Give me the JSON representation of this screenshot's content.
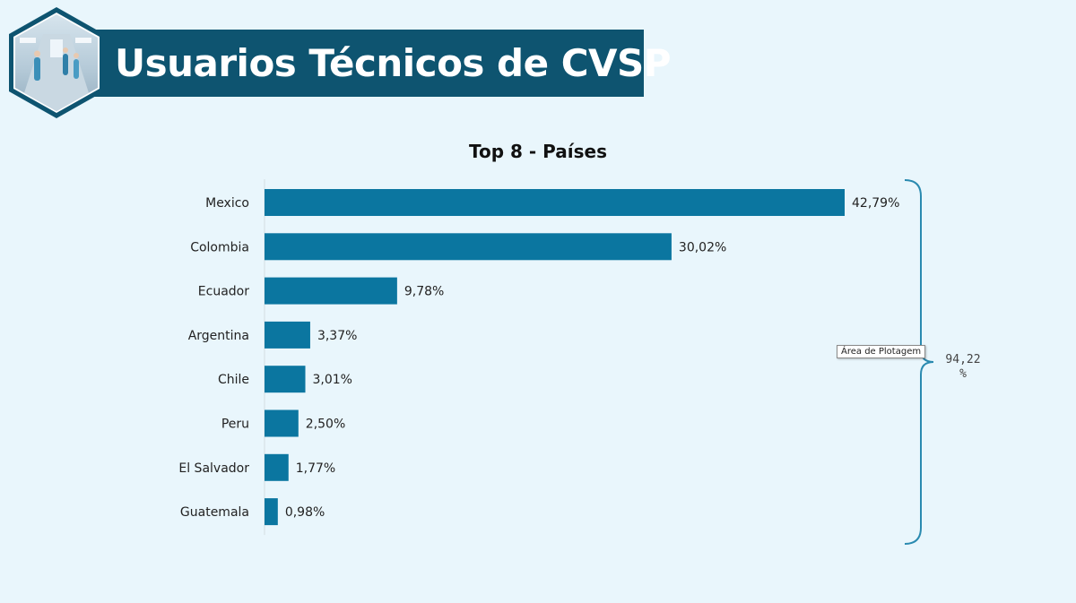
{
  "header": {
    "title": "Usuarios Técnicos de CVSP",
    "banner_color": "#0e5470",
    "logo_icon": "hospital-corridor-photo"
  },
  "chart_data": {
    "type": "bar",
    "orientation": "horizontal",
    "title": "Top 8 - Países",
    "categories": [
      "Mexico",
      "Colombia",
      "Ecuador",
      "Argentina",
      "Chile",
      "Peru",
      "El Salvador",
      "Guatemala"
    ],
    "values": [
      42.79,
      30.02,
      9.78,
      3.37,
      3.01,
      2.5,
      1.77,
      0.98
    ],
    "value_labels": [
      "42,79%",
      "30,02%",
      "9,78%",
      "3,37%",
      "3,01%",
      "2,50%",
      "1,77%",
      "0,98%"
    ],
    "xlabel": "",
    "ylabel": "",
    "xlim": [
      0,
      42.79
    ],
    "bar_color": "#0b76a0",
    "grid": false,
    "legend": "none",
    "annotation": {
      "total_value": "94,22",
      "total_unit": "%",
      "tooltip": "Área de Plotagem",
      "bracket_color": "#2a8ab0"
    }
  }
}
